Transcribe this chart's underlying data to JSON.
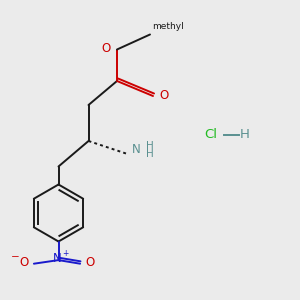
{
  "bg_color": "#ebebeb",
  "bond_color": "#1a1a1a",
  "o_color": "#cc0000",
  "n_color": "#1a1acc",
  "nh_color": "#5a9090",
  "cl_color": "#22bb22",
  "h_color": "#5a9090",
  "figsize": [
    3.0,
    3.0
  ],
  "dpi": 100,
  "xlim": [
    0,
    10
  ],
  "ylim": [
    0,
    10
  ],
  "lw": 1.4,
  "fs": 8.5,
  "fs_small": 6.5,
  "fs_super": 5.5
}
